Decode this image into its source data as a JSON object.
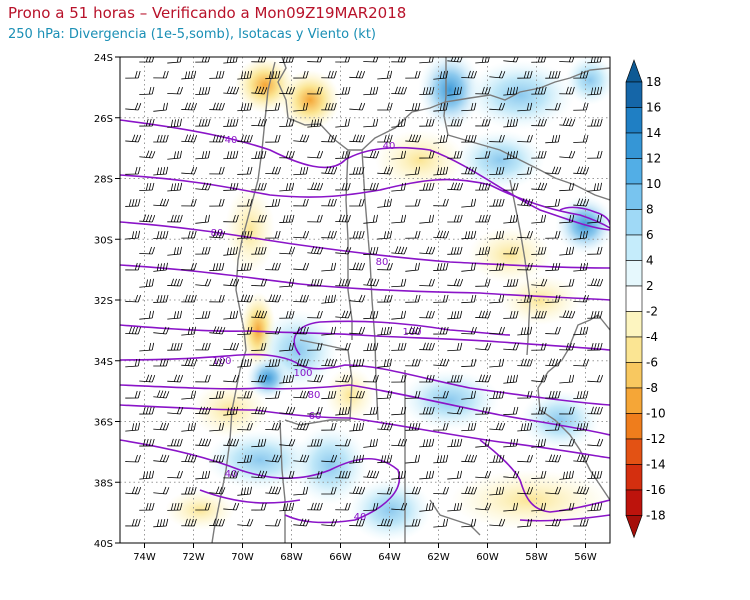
{
  "header": {
    "title": "Prono a 51 horas – Verificando a Mon09Z19MAR2018",
    "subtitle": "250 hPa: Divergencia (1e-5,somb), Isotacas y Viento (kt)"
  },
  "map": {
    "lon_range": [
      -75,
      -55
    ],
    "lat_range": [
      -40,
      -24
    ],
    "lon_ticks": [
      "74W",
      "72W",
      "70W",
      "68W",
      "66W",
      "64W",
      "62W",
      "60W",
      "58W",
      "56W"
    ],
    "lat_ticks": [
      "24S",
      "26S",
      "28S",
      "30S",
      "32S",
      "34S",
      "36S",
      "38S",
      "40S"
    ],
    "isotach_labels": [
      "40",
      "40",
      "80",
      "80",
      "100",
      "100",
      "100",
      "80",
      "60",
      "40",
      "40"
    ],
    "colors": {
      "isotach": "#8a14c8",
      "barb": "#000000",
      "border": "#7a7a7a",
      "grid": "#9a9a9a"
    }
  },
  "colorbar": {
    "labels": [
      "18",
      "16",
      "14",
      "12",
      "10",
      "8",
      "6",
      "4",
      "2",
      "-2",
      "-4",
      "-6",
      "-8",
      "-10",
      "-12",
      "-14",
      "-16",
      "-18"
    ],
    "colors": [
      "#1566a8",
      "#1f7fc4",
      "#3596d6",
      "#52aee6",
      "#78c4ef",
      "#9fd9f6",
      "#c5ecfb",
      "#e6f8fd",
      "#ffffff",
      "#fdf5c0",
      "#fbe593",
      "#f8c860",
      "#f5a637",
      "#ef7d1c",
      "#e35214",
      "#d42f0f",
      "#bd130c"
    ],
    "top_arrow_color": "#0e5a94",
    "bottom_arrow_color": "#a50f0a"
  }
}
